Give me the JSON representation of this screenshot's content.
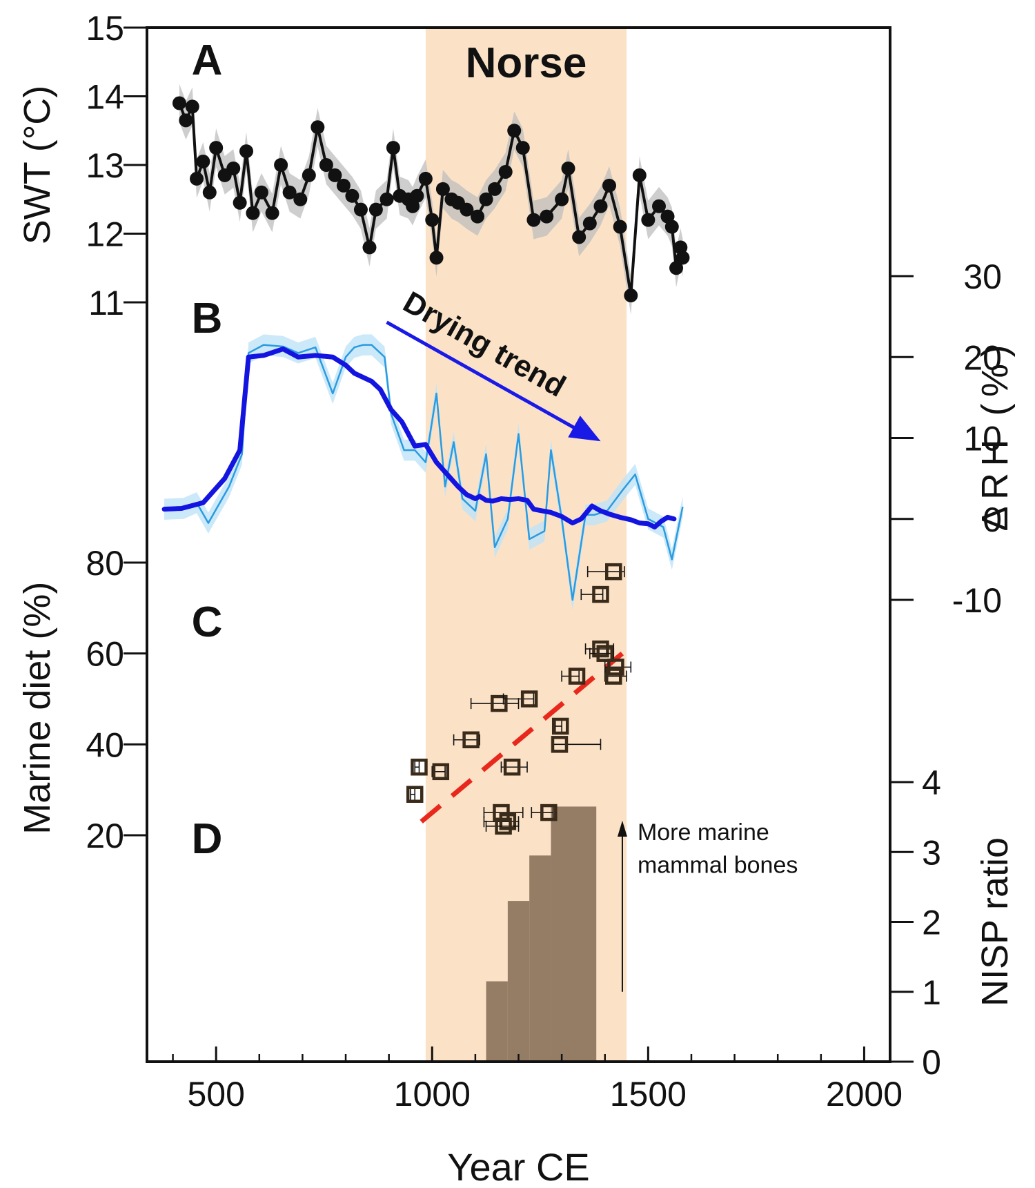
{
  "chart_data": {
    "type": "line",
    "panels": [
      "A",
      "B",
      "C",
      "D"
    ],
    "xlabel": "Year CE",
    "x_ticks": [
      500,
      1000,
      1500,
      2000
    ],
    "xlim": [
      340,
      2060
    ],
    "shaded_period": {
      "label": "Norse",
      "x": [
        985,
        1450
      ],
      "color": "#fbe2c7"
    },
    "annotations": {
      "drying_trend": "Drying trend",
      "nisp_note_line1": "More marine",
      "nisp_note_line2": "mammal bones"
    },
    "colors": {
      "swt": "#111111",
      "swt_band": "#bdbdbd",
      "rh_smooth": "#1414e0",
      "rh_raw": "#2a9be0",
      "rh_band": "#bfe3f7",
      "marine": "#3a2a1a",
      "trendline": "#e8281c",
      "nisp": "#8b735c",
      "norse": "#fbe2c7",
      "arrow": "#1a1ae6"
    },
    "swt": {
      "ylabel": "SWT (°C)",
      "ylim": [
        11,
        15
      ],
      "y_ticks": [
        11,
        12,
        13,
        14,
        15
      ],
      "points": [
        [
          415,
          13.9
        ],
        [
          430,
          13.65
        ],
        [
          445,
          13.85
        ],
        [
          455,
          12.8
        ],
        [
          470,
          13.05
        ],
        [
          485,
          12.6
        ],
        [
          500,
          13.25
        ],
        [
          520,
          12.85
        ],
        [
          540,
          12.95
        ],
        [
          555,
          12.45
        ],
        [
          570,
          13.2
        ],
        [
          585,
          12.3
        ],
        [
          605,
          12.6
        ],
        [
          630,
          12.3
        ],
        [
          650,
          13.0
        ],
        [
          670,
          12.6
        ],
        [
          695,
          12.5
        ],
        [
          715,
          12.85
        ],
        [
          735,
          13.55
        ],
        [
          755,
          13.0
        ],
        [
          775,
          12.85
        ],
        [
          795,
          12.7
        ],
        [
          815,
          12.55
        ],
        [
          835,
          12.35
        ],
        [
          855,
          11.8
        ],
        [
          870,
          12.35
        ],
        [
          895,
          12.5
        ],
        [
          910,
          13.25
        ],
        [
          925,
          12.55
        ],
        [
          945,
          12.5
        ],
        [
          955,
          12.4
        ],
        [
          965,
          12.55
        ],
        [
          985,
          12.8
        ],
        [
          1000,
          12.2
        ],
        [
          1010,
          11.65
        ],
        [
          1025,
          12.65
        ],
        [
          1045,
          12.5
        ],
        [
          1060,
          12.45
        ],
        [
          1080,
          12.35
        ],
        [
          1105,
          12.25
        ],
        [
          1125,
          12.5
        ],
        [
          1145,
          12.65
        ],
        [
          1170,
          12.9
        ],
        [
          1190,
          13.5
        ],
        [
          1210,
          13.25
        ],
        [
          1235,
          12.2
        ],
        [
          1265,
          12.25
        ],
        [
          1300,
          12.5
        ],
        [
          1315,
          12.95
        ],
        [
          1340,
          11.95
        ],
        [
          1365,
          12.15
        ],
        [
          1390,
          12.4
        ],
        [
          1410,
          12.7
        ],
        [
          1435,
          12.1
        ],
        [
          1460,
          11.1
        ],
        [
          1480,
          12.85
        ],
        [
          1500,
          12.2
        ],
        [
          1525,
          12.4
        ],
        [
          1545,
          12.25
        ],
        [
          1555,
          12.1
        ],
        [
          1565,
          11.5
        ],
        [
          1575,
          11.8
        ],
        [
          1580,
          11.65
        ]
      ]
    },
    "rh": {
      "ylabel": "ΔRH (%)",
      "ylim": [
        -10,
        30
      ],
      "y_ticks": [
        -10,
        0,
        10,
        20,
        30
      ],
      "smooth": [
        [
          380,
          1.2
        ],
        [
          420,
          1.3
        ],
        [
          470,
          2.0
        ],
        [
          520,
          5.0
        ],
        [
          555,
          8.5
        ],
        [
          575,
          20.0
        ],
        [
          610,
          20.2
        ],
        [
          655,
          21.0
        ],
        [
          690,
          20.0
        ],
        [
          730,
          20.2
        ],
        [
          770,
          20.0
        ],
        [
          800,
          19.0
        ],
        [
          820,
          18.0
        ],
        [
          840,
          17.5
        ],
        [
          860,
          17.0
        ],
        [
          880,
          16.0
        ],
        [
          905,
          13.5
        ],
        [
          930,
          12.0
        ],
        [
          960,
          9.0
        ],
        [
          985,
          9.2
        ],
        [
          1010,
          7.0
        ],
        [
          1035,
          5.5
        ],
        [
          1060,
          4.0
        ],
        [
          1080,
          3.0
        ],
        [
          1100,
          2.5
        ],
        [
          1110,
          2.8
        ],
        [
          1125,
          2.3
        ],
        [
          1140,
          2.2
        ],
        [
          1160,
          2.5
        ],
        [
          1180,
          2.4
        ],
        [
          1200,
          2.5
        ],
        [
          1220,
          2.3
        ],
        [
          1235,
          1.2
        ],
        [
          1255,
          1.0
        ],
        [
          1275,
          0.8
        ],
        [
          1300,
          0.3
        ],
        [
          1325,
          -0.5
        ],
        [
          1345,
          0.0
        ],
        [
          1370,
          1.6
        ],
        [
          1390,
          1.0
        ],
        [
          1410,
          0.6
        ],
        [
          1435,
          0.2
        ],
        [
          1460,
          -0.1
        ],
        [
          1480,
          -0.5
        ],
        [
          1500,
          -0.6
        ],
        [
          1515,
          -1.0
        ],
        [
          1530,
          -0.3
        ],
        [
          1545,
          0.2
        ],
        [
          1560,
          0.0
        ]
      ],
      "raw": [
        [
          380,
          1.2
        ],
        [
          425,
          1.3
        ],
        [
          455,
          2.0
        ],
        [
          482,
          -0.5
        ],
        [
          530,
          4.0
        ],
        [
          560,
          8.0
        ],
        [
          575,
          20.5
        ],
        [
          610,
          21.5
        ],
        [
          655,
          21.3
        ],
        [
          690,
          20.5
        ],
        [
          730,
          21.2
        ],
        [
          770,
          15.5
        ],
        [
          800,
          20.0
        ],
        [
          820,
          21.2
        ],
        [
          840,
          21.5
        ],
        [
          860,
          21.5
        ],
        [
          890,
          20.0
        ],
        [
          905,
          13.0
        ],
        [
          935,
          8.5
        ],
        [
          960,
          8.5
        ],
        [
          985,
          7.0
        ],
        [
          1010,
          15.5
        ],
        [
          1030,
          4.0
        ],
        [
          1050,
          9.5
        ],
        [
          1070,
          2.5
        ],
        [
          1100,
          1.0
        ],
        [
          1125,
          8.0
        ],
        [
          1145,
          -3.5
        ],
        [
          1175,
          0.0
        ],
        [
          1200,
          10.5
        ],
        [
          1225,
          -2.5
        ],
        [
          1260,
          -1.5
        ],
        [
          1275,
          8.5
        ],
        [
          1300,
          0.0
        ],
        [
          1325,
          -10.0
        ],
        [
          1355,
          0.5
        ],
        [
          1375,
          0.5
        ],
        [
          1405,
          1.0
        ],
        [
          1440,
          3.5
        ],
        [
          1470,
          5.5
        ],
        [
          1500,
          0.0
        ],
        [
          1535,
          -1.0
        ],
        [
          1555,
          -5.0
        ],
        [
          1580,
          1.5
        ]
      ]
    },
    "marine_diet": {
      "ylabel": "Marine diet (%)",
      "ylim": [
        20,
        80
      ],
      "y_ticks": [
        20,
        40,
        60,
        80
      ],
      "points": [
        {
          "x": 970,
          "y": 35,
          "xerr_low": 970,
          "xerr_high": 960
        },
        {
          "x": 960,
          "y": 29,
          "xerr_low": 950,
          "xerr_high": 960
        },
        {
          "x": 1020,
          "y": 34,
          "xerr_low": 1000,
          "xerr_high": 1030
        },
        {
          "x": 1090,
          "y": 41,
          "xerr_low": 1050,
          "xerr_high": 1110
        },
        {
          "x": 1185,
          "y": 35,
          "xerr_low": 1160,
          "xerr_high": 1220
        },
        {
          "x": 1155,
          "y": 49,
          "xerr_low": 1090,
          "xerr_high": 1200
        },
        {
          "x": 1225,
          "y": 50,
          "xerr_low": 1165,
          "xerr_high": 1235
        },
        {
          "x": 1270,
          "y": 25,
          "xerr_low": 1230,
          "xerr_high": 1280
        },
        {
          "x": 1160,
          "y": 25,
          "xerr_low": 1120,
          "xerr_high": 1210
        },
        {
          "x": 1175,
          "y": 23,
          "xerr_low": 1120,
          "xerr_high": 1200
        },
        {
          "x": 1165,
          "y": 22,
          "xerr_low": 1125,
          "xerr_high": 1200
        },
        {
          "x": 1297,
          "y": 44,
          "xerr_low": 1285,
          "xerr_high": 1300
        },
        {
          "x": 1295,
          "y": 40,
          "xerr_low": 1280,
          "xerr_high": 1390
        },
        {
          "x": 1335,
          "y": 55,
          "xerr_low": 1300,
          "xerr_high": 1340
        },
        {
          "x": 1390,
          "y": 61,
          "xerr_low": 1355,
          "xerr_high": 1420
        },
        {
          "x": 1400,
          "y": 60,
          "xerr_low": 1365,
          "xerr_high": 1420
        },
        {
          "x": 1420,
          "y": 55,
          "xerr_low": 1400,
          "xerr_high": 1450
        },
        {
          "x": 1425,
          "y": 57,
          "xerr_low": 1400,
          "xerr_high": 1460
        },
        {
          "x": 1390,
          "y": 73,
          "xerr_low": 1345,
          "xerr_high": 1395
        },
        {
          "x": 1420,
          "y": 78,
          "xerr_low": 1360,
          "xerr_high": 1445
        }
      ],
      "trendline": [
        [
          975,
          23
        ],
        [
          1440,
          60
        ]
      ]
    },
    "nisp": {
      "ylabel": "NISP ratio",
      "ylim": [
        0,
        4
      ],
      "y_ticks": [
        0,
        1,
        2,
        3,
        4
      ],
      "steps": [
        {
          "x0": 1125,
          "x1": 1175,
          "value": 1.15
        },
        {
          "x0": 1175,
          "x1": 1225,
          "value": 2.3
        },
        {
          "x0": 1225,
          "x1": 1275,
          "value": 2.95
        },
        {
          "x0": 1275,
          "x1": 1380,
          "value": 3.65
        }
      ]
    }
  }
}
